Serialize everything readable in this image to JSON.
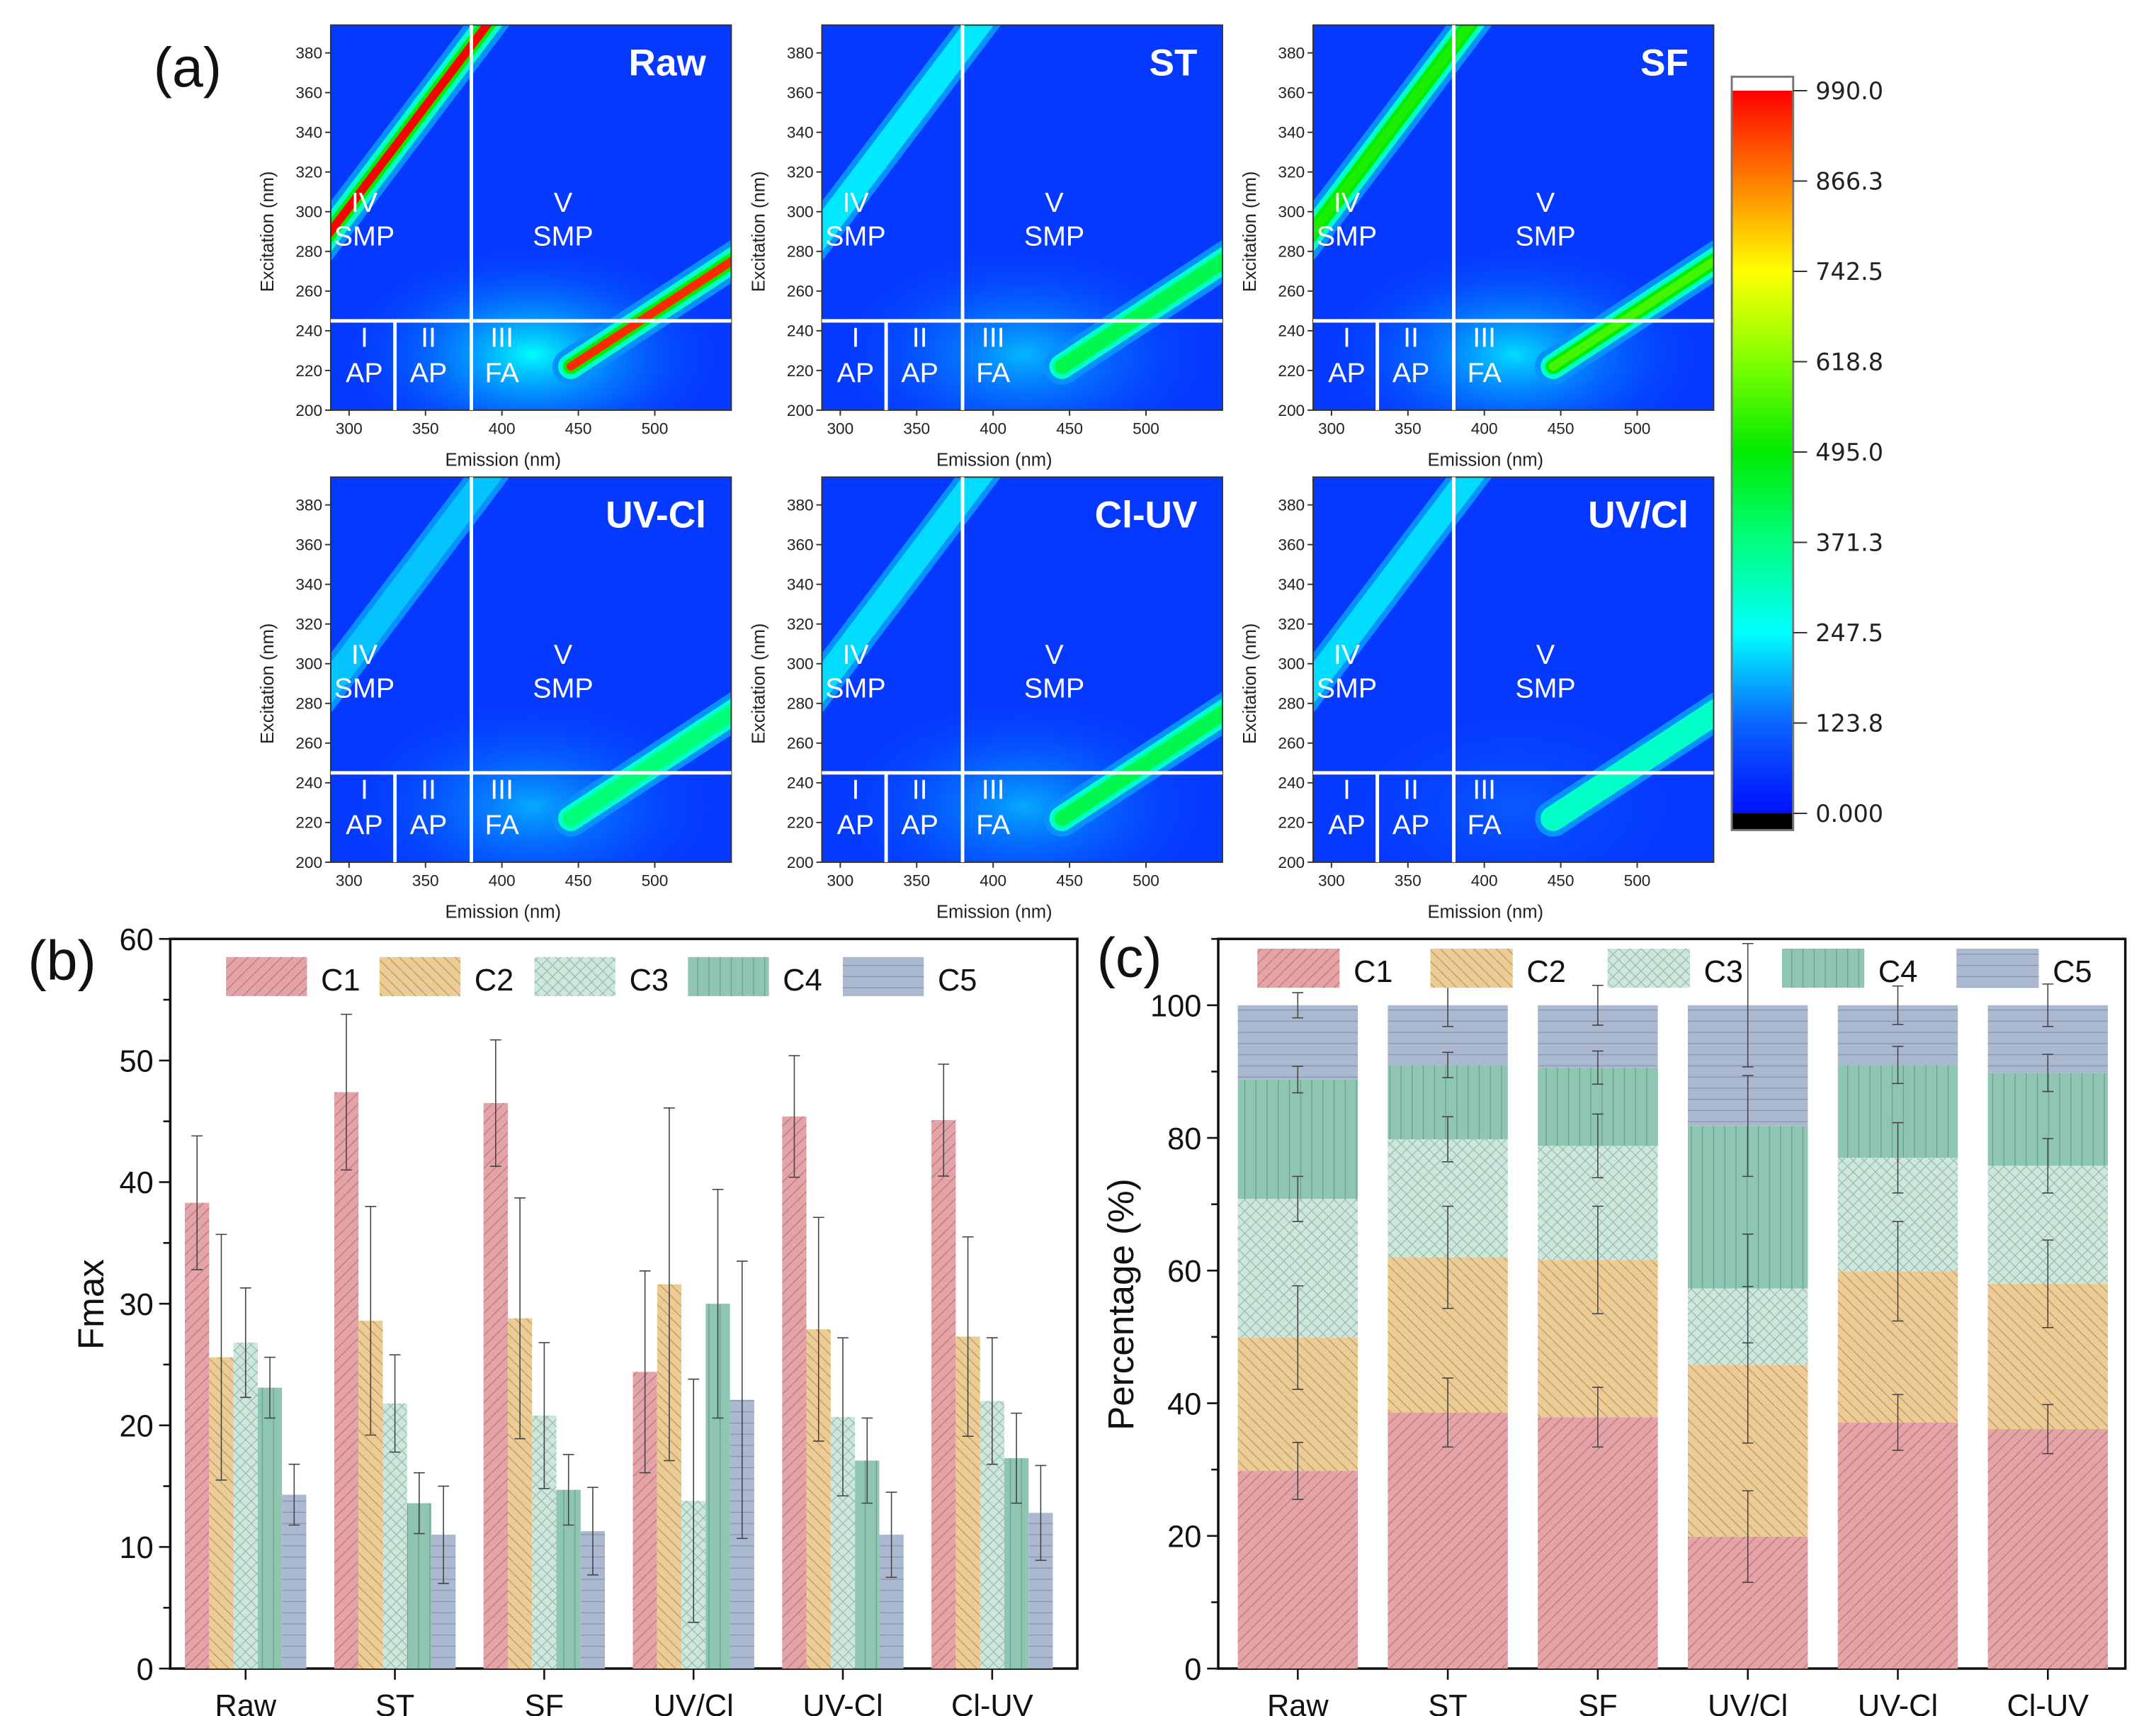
{
  "panel_labels": {
    "a": "(a)",
    "b": "(b)",
    "c": "(c)"
  },
  "chart_data": [
    {
      "type": "heatmap",
      "id": "eem",
      "xlabel": "Emission (nm)",
      "ylabel": "Excitation (nm)",
      "xlim": [
        288,
        550
      ],
      "ylim": [
        200,
        394
      ],
      "xticks": [
        300,
        350,
        400,
        450,
        500
      ],
      "yticks": [
        200,
        220,
        240,
        260,
        280,
        300,
        320,
        340,
        360,
        380
      ],
      "region_boundaries": {
        "em_split_low": 330,
        "em_split": 380,
        "ex_split": 245
      },
      "regions": [
        {
          "num": "I",
          "name": "AP"
        },
        {
          "num": "II",
          "name": "AP"
        },
        {
          "num": "III",
          "name": "FA"
        },
        {
          "num": "IV",
          "name": "SMP"
        },
        {
          "num": "V",
          "name": "SMP"
        }
      ],
      "panels": [
        {
          "title": "Raw",
          "rayleigh_intensity": 990,
          "second_order_intensity": 950,
          "background_glow": 250
        },
        {
          "title": "ST",
          "rayleigh_intensity": 230,
          "second_order_intensity": 420,
          "background_glow": 190
        },
        {
          "title": "SF",
          "rayleigh_intensity": 520,
          "second_order_intensity": 560,
          "background_glow": 220
        },
        {
          "title": "UV-Cl",
          "rayleigh_intensity": 200,
          "second_order_intensity": 380,
          "background_glow": 180
        },
        {
          "title": "Cl-UV",
          "rayleigh_intensity": 220,
          "second_order_intensity": 420,
          "background_glow": 180
        },
        {
          "title": "UV/Cl",
          "rayleigh_intensity": 220,
          "second_order_intensity": 300,
          "background_glow": 110
        }
      ],
      "colorbar": {
        "range": [
          0,
          990
        ],
        "ticks": [
          "990.0",
          "866.3",
          "742.5",
          "618.8",
          "495.0",
          "371.3",
          "247.5",
          "123.8",
          "0.000"
        ]
      }
    },
    {
      "type": "bar",
      "id": "fmax",
      "ylabel": "Fmax",
      "xlabel": "",
      "ylim": [
        0,
        60
      ],
      "yticks": [
        "0",
        "10",
        "20",
        "30",
        "40",
        "50",
        "60"
      ],
      "categories": [
        "Raw",
        "ST",
        "SF",
        "UV/Cl",
        "UV-Cl",
        "Cl-UV"
      ],
      "legend": "top",
      "series": [
        {
          "name": "C1",
          "color": "#e3a3a7",
          "values": [
            38.3,
            47.4,
            46.5,
            24.4,
            45.4,
            45.1
          ],
          "errors": [
            5.5,
            6.4,
            5.2,
            8.3,
            5.0,
            4.6
          ]
        },
        {
          "name": "C2",
          "color": "#edcb95",
          "values": [
            25.6,
            28.6,
            28.8,
            31.6,
            27.9,
            27.3
          ],
          "errors": [
            10.1,
            9.4,
            9.9,
            14.5,
            9.2,
            8.2
          ]
        },
        {
          "name": "C3",
          "color": "#cde7dd",
          "values": [
            26.8,
            21.8,
            20.8,
            13.8,
            20.7,
            22.0
          ],
          "errors": [
            4.5,
            4.0,
            6.0,
            10.0,
            6.5,
            5.2
          ]
        },
        {
          "name": "C4",
          "color": "#8fc6b1",
          "values": [
            23.1,
            13.6,
            14.7,
            30.0,
            17.1,
            17.3
          ],
          "errors": [
            2.5,
            2.5,
            2.9,
            9.4,
            3.5,
            3.7
          ]
        },
        {
          "name": "C5",
          "color": "#abb9d0",
          "values": [
            14.3,
            11.0,
            11.3,
            22.1,
            11.0,
            12.8
          ],
          "errors": [
            2.5,
            4.0,
            3.6,
            11.4,
            3.5,
            3.9
          ]
        }
      ]
    },
    {
      "type": "bar",
      "stacked": true,
      "id": "percentage",
      "ylabel": "Percentage (%)",
      "xlabel": "",
      "ylim": [
        0,
        110
      ],
      "yticks": [
        "0",
        "20",
        "40",
        "60",
        "80",
        "100"
      ],
      "categories": [
        "Raw",
        "ST",
        "SF",
        "UV/Cl",
        "UV-Cl",
        "Cl-UV"
      ],
      "legend": "top",
      "series": [
        {
          "name": "C1",
          "color": "#e3a3a7",
          "values": [
            29.8,
            38.6,
            37.9,
            19.9,
            37.1,
            36.1
          ],
          "errors": [
            4.3,
            5.2,
            4.5,
            6.9,
            4.2,
            3.7
          ]
        },
        {
          "name": "C2",
          "color": "#edcb95",
          "values": [
            20.1,
            23.4,
            23.7,
            25.9,
            22.8,
            21.9
          ],
          "errors": [
            7.8,
            7.7,
            8.1,
            11.8,
            7.5,
            6.6
          ]
        },
        {
          "name": "C3",
          "color": "#cde7dd",
          "values": [
            20.9,
            17.8,
            17.2,
            11.5,
            17.1,
            17.8
          ],
          "errors": [
            3.4,
            3.4,
            4.8,
            8.2,
            5.3,
            4.1
          ]
        },
        {
          "name": "C4",
          "color": "#8fc6b1",
          "values": [
            18.0,
            11.2,
            11.8,
            24.5,
            14.0,
            14.0
          ],
          "errors": [
            2.0,
            1.9,
            2.5,
            7.6,
            2.8,
            2.8
          ]
        },
        {
          "name": "C5",
          "color": "#abb9d0",
          "values": [
            11.2,
            9.0,
            9.4,
            18.2,
            9.0,
            10.2
          ],
          "errors": [
            1.9,
            3.2,
            3.0,
            9.3,
            2.9,
            3.2
          ]
        }
      ]
    }
  ]
}
